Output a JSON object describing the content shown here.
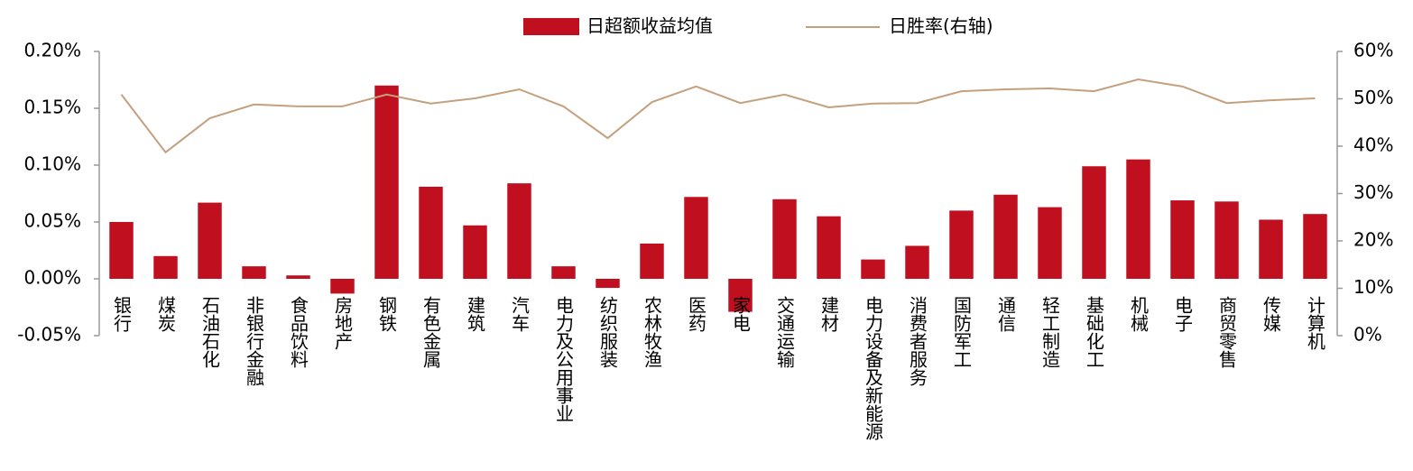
{
  "chart_data": {
    "type": "bar-line",
    "categories": [
      "银行",
      "煤炭",
      "石油石化",
      "非银行金融",
      "食品饮料",
      "房地产",
      "钢铁",
      "有色金属",
      "建筑",
      "汽车",
      "电力及公用事业",
      "纺织服装",
      "农林牧渔",
      "医药",
      "家电",
      "交通运输",
      "建材",
      "电力设备及新能源",
      "消费者服务",
      "国防军工",
      "通信",
      "轻工制造",
      "基础化工",
      "机械",
      "电子",
      "商贸零售",
      "传媒",
      "计算机"
    ],
    "series": [
      {
        "name": "日超额收益均值",
        "type": "bar",
        "color": "#c00f1e",
        "values": [
          0.05,
          0.02,
          0.067,
          0.011,
          0.003,
          -0.013,
          0.17,
          0.081,
          0.047,
          0.084,
          0.011,
          -0.008,
          0.031,
          0.072,
          -0.029,
          0.07,
          0.055,
          0.017,
          0.029,
          0.06,
          0.074,
          0.063,
          0.099,
          0.105,
          0.069,
          0.068,
          0.052,
          0.057
        ]
      },
      {
        "name": "日胜率(右轴)",
        "type": "line",
        "axis": "y2",
        "color": "#c4a07e",
        "values": [
          50.9,
          38.7,
          45.9,
          48.8,
          48.4,
          48.4,
          50.9,
          49.0,
          50.1,
          52.0,
          48.4,
          41.7,
          49.3,
          52.6,
          49.1,
          50.9,
          48.2,
          49.0,
          49.1,
          51.6,
          52.0,
          52.2,
          51.6,
          54.1,
          52.6,
          49.1,
          49.7,
          50.1
        ]
      }
    ],
    "ylim": [
      -0.05,
      0.2
    ],
    "yticks": [
      {
        "value": -0.05,
        "label": "-0.05%"
      },
      {
        "value": 0,
        "label": "0.00%"
      },
      {
        "value": 0.05,
        "label": "0.05%"
      },
      {
        "value": 0.1,
        "label": "0.10%"
      },
      {
        "value": 0.15,
        "label": "0.15%"
      },
      {
        "value": 0.2,
        "label": "0.20%"
      }
    ],
    "y2lim": [
      0,
      60
    ],
    "y2ticks": [
      {
        "value": 0,
        "label": "0%"
      },
      {
        "value": 10,
        "label": "10%"
      },
      {
        "value": 20,
        "label": "20%"
      },
      {
        "value": 30,
        "label": "30%"
      },
      {
        "value": 40,
        "label": "40%"
      },
      {
        "value": 50,
        "label": "50%"
      },
      {
        "value": 60,
        "label": "60%"
      }
    ],
    "legend": "top"
  }
}
